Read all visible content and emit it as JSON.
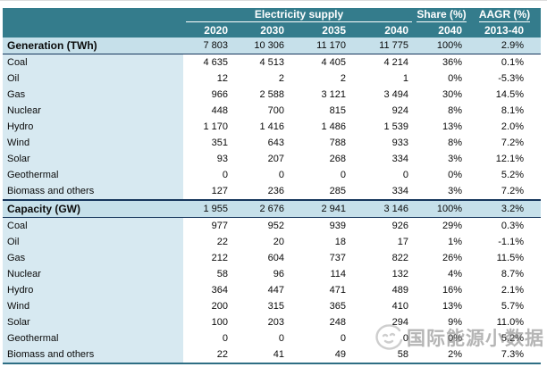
{
  "colors": {
    "header_teal": "#347c8c",
    "section_row_bg": "#c6e0ea",
    "label_col_bg": "#d7e9f1",
    "section_border_navy": "#16365c",
    "table_bottom_teal": "#2e6e84",
    "watermark_gray": "#808080"
  },
  "watermark": {
    "text": "国际能源小数据",
    "logo": "smiley-circle-logo"
  },
  "chart_data": {
    "type": "table",
    "title": "",
    "column_groups": [
      {
        "label": "Electricity supply",
        "span": 4
      },
      {
        "label": "Share (%)",
        "span": 1
      },
      {
        "label": "AAGR (%)",
        "span": 1
      }
    ],
    "columns": [
      "2020",
      "2030",
      "2035",
      "2040",
      "2040",
      "2013-40"
    ],
    "sections": [
      {
        "header": {
          "label": "Generation (TWh)",
          "values": [
            "7 803",
            "10 306",
            "11 170",
            "11 775",
            "100%",
            "2.9%"
          ]
        },
        "rows": [
          {
            "label": "Coal",
            "values": [
              "4 635",
              "4 513",
              "4 405",
              "4 214",
              "36%",
              "0.1%"
            ]
          },
          {
            "label": "Oil",
            "values": [
              "12",
              "2",
              "2",
              "1",
              "0%",
              "-5.3%"
            ]
          },
          {
            "label": "Gas",
            "values": [
              "966",
              "2 588",
              "3 121",
              "3 494",
              "30%",
              "14.5%"
            ]
          },
          {
            "label": "Nuclear",
            "values": [
              "448",
              "700",
              "815",
              "924",
              "8%",
              "8.1%"
            ]
          },
          {
            "label": "Hydro",
            "values": [
              "1 170",
              "1 416",
              "1 486",
              "1 539",
              "13%",
              "2.0%"
            ]
          },
          {
            "label": "Wind",
            "values": [
              "351",
              "643",
              "788",
              "933",
              "8%",
              "7.2%"
            ]
          },
          {
            "label": "Solar",
            "values": [
              "93",
              "207",
              "268",
              "334",
              "3%",
              "12.1%"
            ]
          },
          {
            "label": "Geothermal",
            "values": [
              "0",
              "0",
              "0",
              "0",
              "0%",
              "5.2%"
            ]
          },
          {
            "label": "Biomass and others",
            "values": [
              "127",
              "236",
              "285",
              "334",
              "3%",
              "7.2%"
            ]
          }
        ]
      },
      {
        "header": {
          "label": "Capacity (GW)",
          "values": [
            "1 955",
            "2 676",
            "2 941",
            "3 146",
            "100%",
            "3.2%"
          ]
        },
        "rows": [
          {
            "label": "Coal",
            "values": [
              "977",
              "952",
              "939",
              "926",
              "29%",
              "0.3%"
            ]
          },
          {
            "label": "Oil",
            "values": [
              "22",
              "20",
              "18",
              "17",
              "1%",
              "-1.1%"
            ]
          },
          {
            "label": "Gas",
            "values": [
              "212",
              "604",
              "737",
              "822",
              "26%",
              "11.5%"
            ]
          },
          {
            "label": "Nuclear",
            "values": [
              "58",
              "96",
              "114",
              "132",
              "4%",
              "8.7%"
            ]
          },
          {
            "label": "Hydro",
            "values": [
              "364",
              "447",
              "471",
              "489",
              "16%",
              "2.1%"
            ]
          },
          {
            "label": "Wind",
            "values": [
              "200",
              "315",
              "365",
              "410",
              "13%",
              "5.7%"
            ]
          },
          {
            "label": "Solar",
            "values": [
              "100",
              "203",
              "248",
              "294",
              "9%",
              "11.0%"
            ]
          },
          {
            "label": "Geothermal",
            "values": [
              "0",
              "0",
              "0",
              "0",
              "0%",
              "5.2%"
            ]
          },
          {
            "label": "Biomass and others",
            "values": [
              "22",
              "41",
              "49",
              "58",
              "2%",
              "7.3%"
            ]
          }
        ]
      }
    ]
  }
}
